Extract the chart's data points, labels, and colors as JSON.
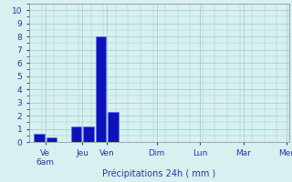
{
  "bar_x": [
    0,
    1,
    3,
    4,
    5,
    6
  ],
  "bar_heights": [
    0.65,
    0.35,
    1.15,
    1.2,
    8.0,
    2.3
  ],
  "bar_color_main": "#1111bb",
  "bar_color_edge": "#4477ff",
  "bar_width": 0.85,
  "xlim": [
    -0.8,
    20.0
  ],
  "ylim": [
    0,
    10
  ],
  "yticks": [
    0,
    1,
    2,
    3,
    4,
    5,
    6,
    7,
    8,
    9,
    10
  ],
  "xtick_positions": [
    0.5,
    3.5,
    5.5,
    9.5,
    13.0,
    16.5,
    20.0
  ],
  "xtick_labels": [
    "Ve\n6am",
    "Jeu",
    "Ven",
    "Dim",
    "Lun",
    "Mar",
    "Mer"
  ],
  "xlabel": "Précipitations 24h ( mm )",
  "background_color": "#d8f0f0",
  "grid_color": "#99cccc",
  "tick_color": "#3333aa",
  "xlabel_fontsize": 7,
  "tick_fontsize": 6.5,
  "figsize": [
    3.2,
    2.0
  ],
  "dpi": 100
}
